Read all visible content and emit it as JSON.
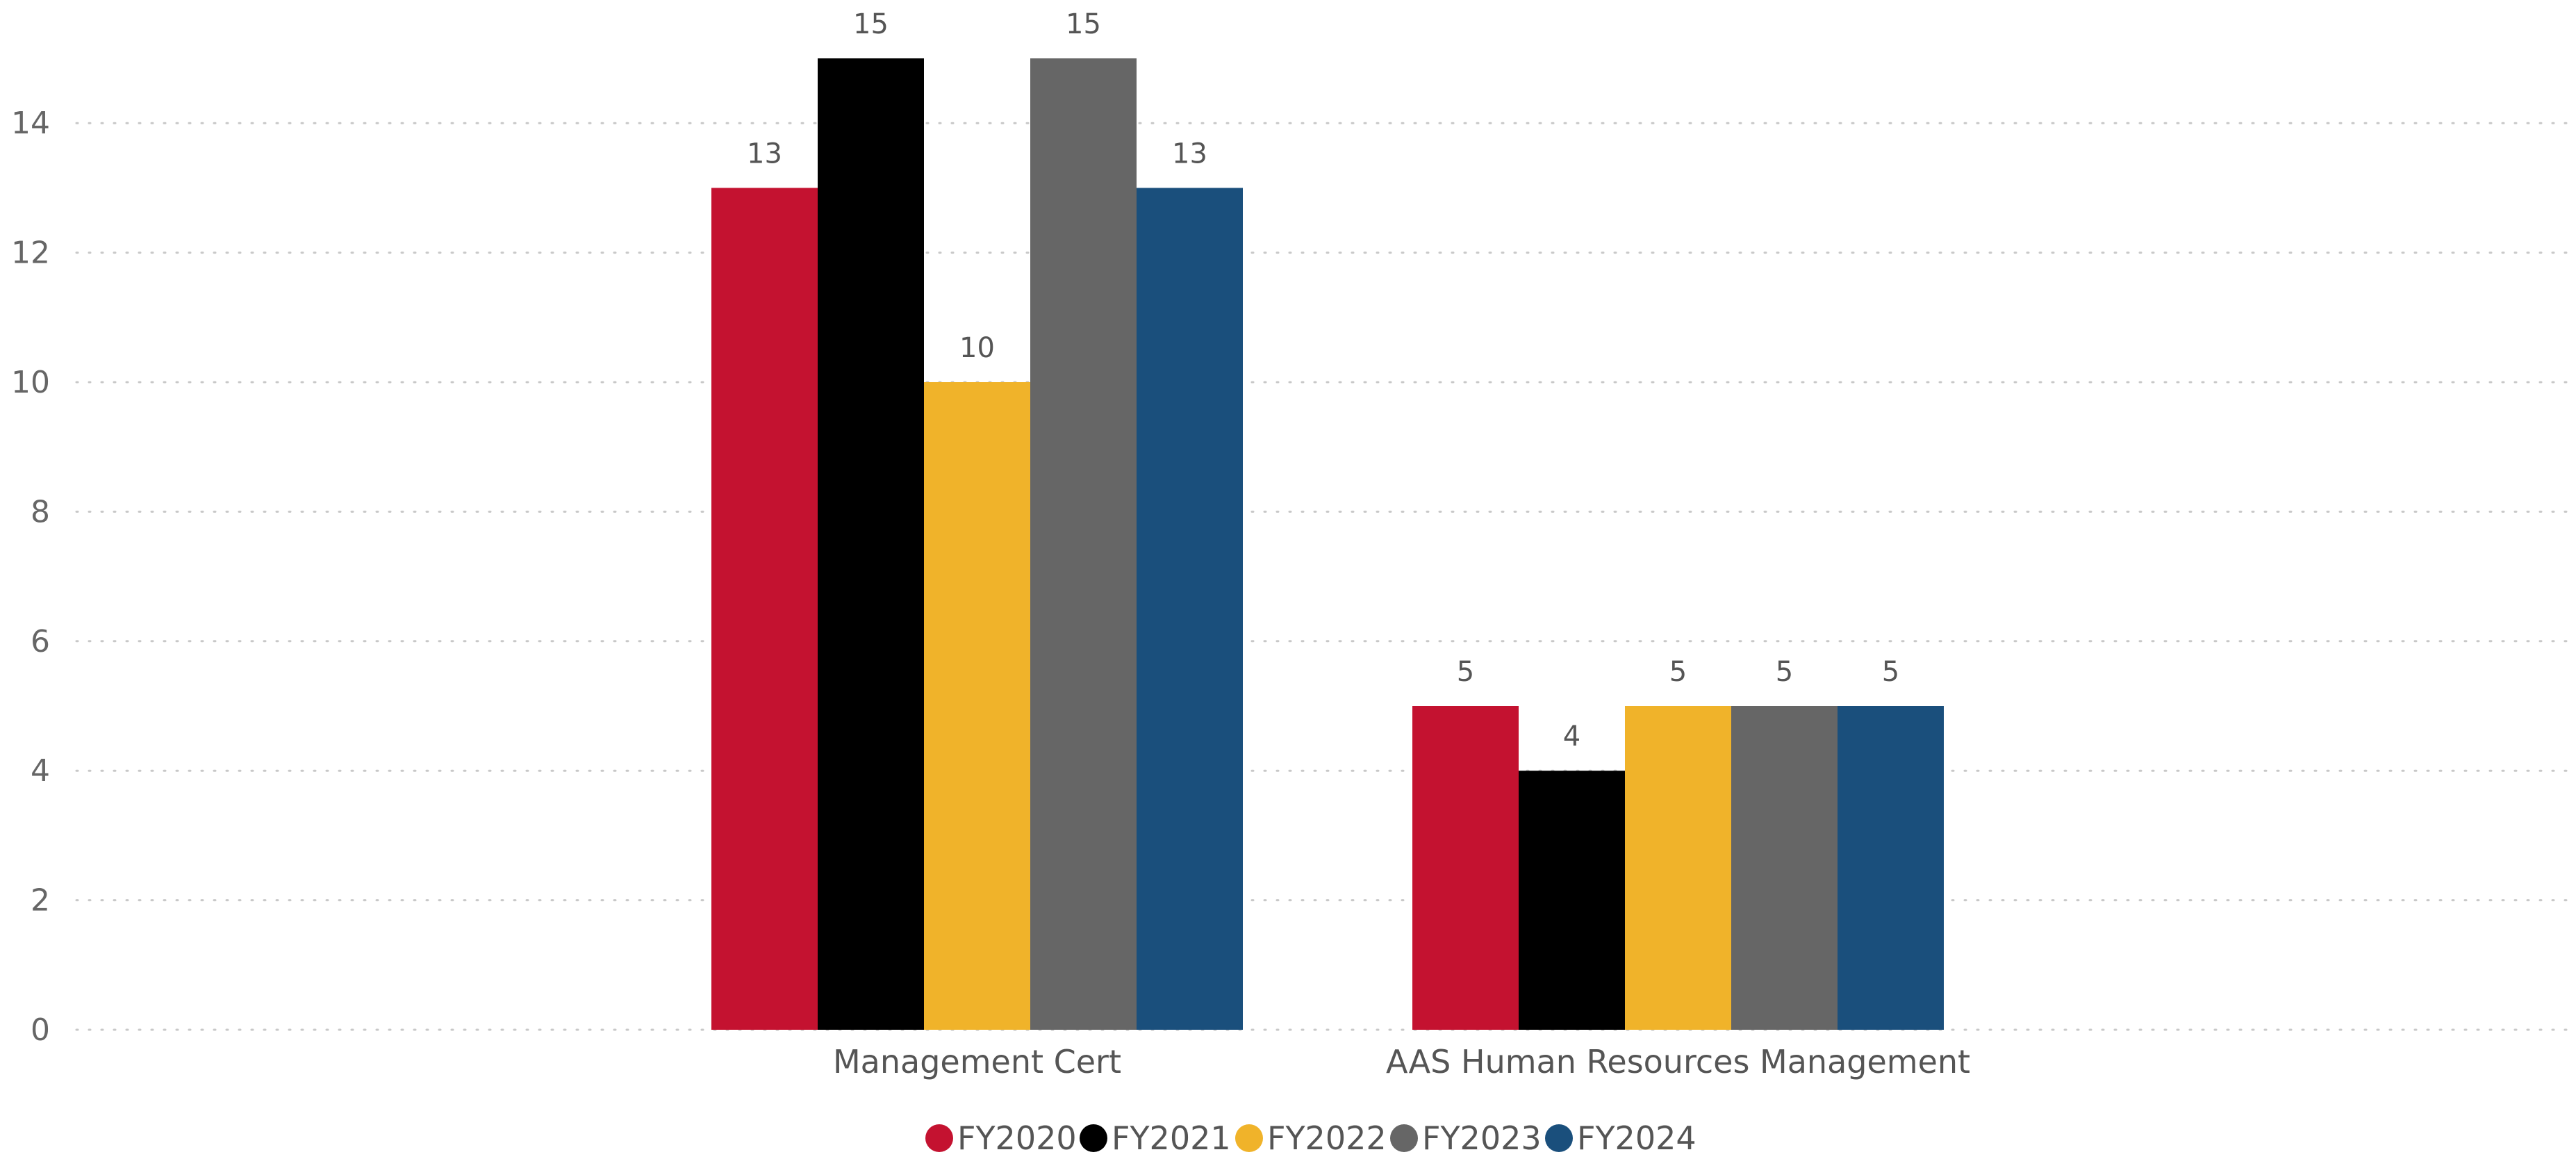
{
  "chart_data": {
    "type": "bar",
    "title": "",
    "xlabel": "",
    "ylabel": "",
    "categories": [
      "Management Cert",
      "AAS Human Resources Management"
    ],
    "series": [
      {
        "name": "FY2020",
        "values": [
          13,
          5
        ],
        "color": "#C41230"
      },
      {
        "name": "FY2021",
        "values": [
          15,
          4
        ],
        "color": "#000000"
      },
      {
        "name": "FY2022",
        "values": [
          10,
          5
        ],
        "color": "#F0B32A"
      },
      {
        "name": "FY2023",
        "values": [
          15,
          5
        ],
        "color": "#666666"
      },
      {
        "name": "FY2024",
        "values": [
          13,
          5
        ],
        "color": "#1A4F7C"
      }
    ],
    "ylim": [
      0,
      15
    ],
    "yticks": [
      0,
      2,
      4,
      6,
      8,
      10,
      12,
      14
    ],
    "grid": true,
    "data_labels": true,
    "legend_position": "bottom-center"
  }
}
